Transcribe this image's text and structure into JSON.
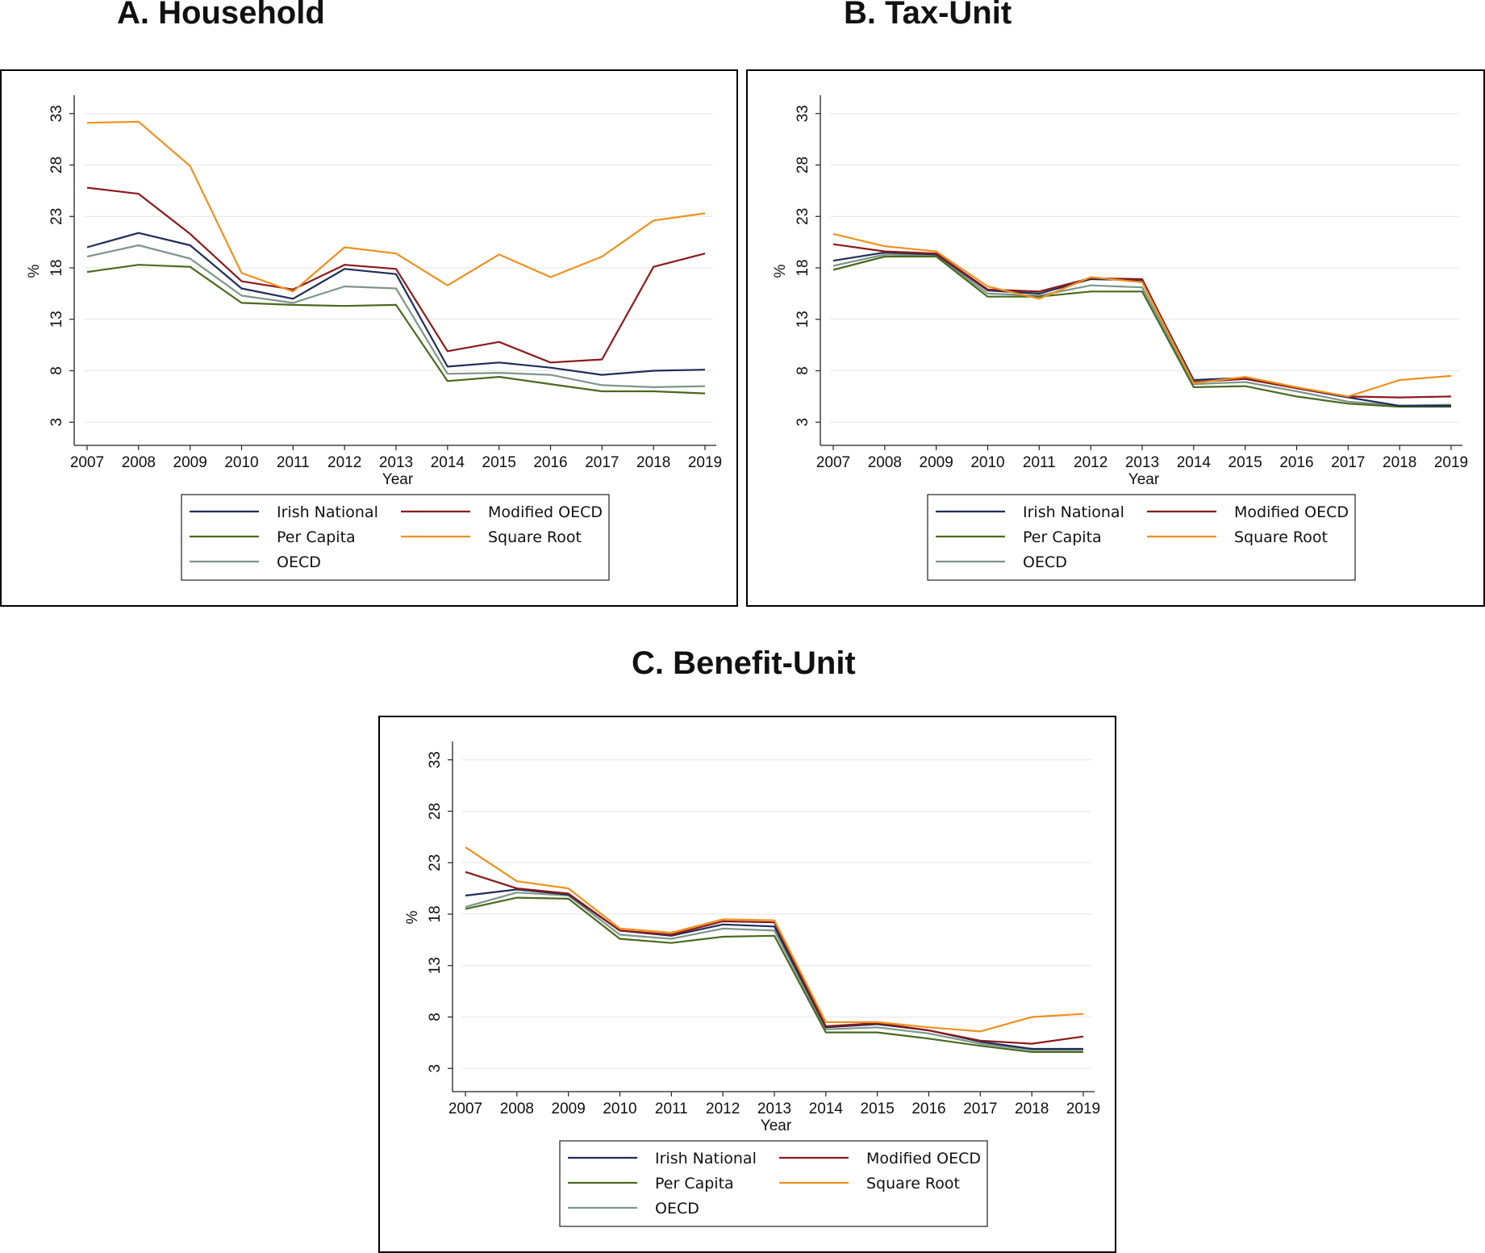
{
  "colors": {
    "irish_national": "#1f2d5a",
    "modified_oecd": "#8b1a1a",
    "per_capita": "#4a6a1e",
    "square_root": "#f0901e",
    "oecd": "#7d968a",
    "grid": "#e6e6e6"
  },
  "chart_data": [
    {
      "type": "line",
      "title": "A. Household",
      "xlabel": "Year",
      "ylabel": "%",
      "ylim": [
        2,
        34
      ],
      "yticks": [
        "3",
        "8",
        "13",
        "18",
        "23",
        "28",
        "33"
      ],
      "grid": true,
      "legend_position": "bottom",
      "x": [
        "2007",
        "2008",
        "2009",
        "2010",
        "2011",
        "2012",
        "2013",
        "2014",
        "2015",
        "2016",
        "2017",
        "2018",
        "2019"
      ],
      "series": [
        {
          "name": "Irish National",
          "color_key": "irish_national",
          "values": [
            20.0,
            21.4,
            20.2,
            16.0,
            15.0,
            17.9,
            17.4,
            8.4,
            8.8,
            8.3,
            7.6,
            8.0,
            8.1
          ]
        },
        {
          "name": "Modified OECD",
          "color_key": "modified_oecd",
          "values": [
            25.8,
            25.2,
            21.3,
            16.7,
            15.9,
            18.3,
            17.9,
            9.9,
            10.8,
            8.8,
            9.1,
            18.1,
            19.4
          ]
        },
        {
          "name": "Per Capita",
          "color_key": "per_capita",
          "values": [
            17.6,
            18.3,
            18.1,
            14.6,
            14.4,
            14.3,
            14.4,
            7.0,
            7.4,
            6.7,
            6.0,
            6.0,
            5.8
          ]
        },
        {
          "name": "Square Root",
          "color_key": "square_root",
          "values": [
            32.1,
            32.2,
            27.9,
            17.5,
            15.7,
            20.0,
            19.4,
            16.3,
            19.3,
            17.1,
            19.1,
            22.6,
            23.3
          ]
        },
        {
          "name": "OECD",
          "color_key": "oecd",
          "values": [
            19.1,
            20.2,
            18.9,
            15.3,
            14.6,
            16.2,
            16.0,
            7.7,
            7.8,
            7.6,
            6.6,
            6.4,
            6.5
          ]
        }
      ]
    },
    {
      "type": "line",
      "title": "B. Tax-Unit",
      "xlabel": "Year",
      "ylabel": "%",
      "ylim": [
        2,
        34
      ],
      "yticks": [
        "3",
        "8",
        "13",
        "18",
        "23",
        "28",
        "33"
      ],
      "grid": true,
      "legend_position": "bottom",
      "x": [
        "2007",
        "2008",
        "2009",
        "2010",
        "2011",
        "2012",
        "2013",
        "2014",
        "2015",
        "2016",
        "2017",
        "2018",
        "2019"
      ],
      "series": [
        {
          "name": "Irish National",
          "color_key": "irish_national",
          "values": [
            18.7,
            19.5,
            19.3,
            15.8,
            15.5,
            16.9,
            16.8,
            7.1,
            7.3,
            6.3,
            5.4,
            4.6,
            4.6
          ]
        },
        {
          "name": "Modified OECD",
          "color_key": "modified_oecd",
          "values": [
            20.3,
            19.6,
            19.4,
            15.9,
            15.7,
            17.0,
            16.9,
            6.9,
            7.2,
            6.3,
            5.5,
            5.4,
            5.5
          ]
        },
        {
          "name": "Per Capita",
          "color_key": "per_capita",
          "values": [
            17.8,
            19.1,
            19.1,
            15.2,
            15.2,
            15.7,
            15.7,
            6.4,
            6.5,
            5.5,
            4.8,
            4.5,
            4.5
          ]
        },
        {
          "name": "Square Root",
          "color_key": "square_root",
          "values": [
            21.3,
            20.1,
            19.6,
            16.2,
            15.0,
            17.1,
            16.6,
            6.8,
            7.4,
            6.4,
            5.5,
            7.1,
            7.5
          ]
        },
        {
          "name": "OECD",
          "color_key": "oecd",
          "values": [
            18.2,
            19.3,
            19.2,
            15.5,
            15.3,
            16.3,
            16.1,
            6.7,
            6.9,
            6.0,
            5.0,
            4.6,
            4.7
          ]
        }
      ]
    },
    {
      "type": "line",
      "title": "C. Benefit-Unit",
      "xlabel": "Year",
      "ylabel": "%",
      "ylim": [
        2,
        34
      ],
      "yticks": [
        "3",
        "8",
        "13",
        "18",
        "23",
        "28",
        "33"
      ],
      "grid": true,
      "legend_position": "bottom",
      "x": [
        "2007",
        "2008",
        "2009",
        "2010",
        "2011",
        "2012",
        "2013",
        "2014",
        "2015",
        "2016",
        "2017",
        "2018",
        "2019"
      ],
      "series": [
        {
          "name": "Irish National",
          "color_key": "irish_national",
          "values": [
            19.8,
            20.4,
            19.9,
            16.4,
            15.9,
            17.0,
            16.8,
            7.0,
            7.3,
            6.7,
            5.6,
            4.9,
            4.9
          ]
        },
        {
          "name": "Modified OECD",
          "color_key": "modified_oecd",
          "values": [
            22.1,
            20.5,
            20.0,
            16.4,
            16.0,
            17.3,
            17.2,
            7.1,
            7.4,
            6.7,
            5.7,
            5.4,
            6.1
          ]
        },
        {
          "name": "Per Capita",
          "color_key": "per_capita",
          "values": [
            18.5,
            19.6,
            19.5,
            15.6,
            15.2,
            15.8,
            15.9,
            6.5,
            6.5,
            5.9,
            5.2,
            4.6,
            4.6
          ]
        },
        {
          "name": "Square Root",
          "color_key": "square_root",
          "values": [
            24.5,
            21.2,
            20.5,
            16.6,
            16.2,
            17.5,
            17.4,
            7.5,
            7.5,
            7.0,
            6.6,
            8.0,
            8.3
          ]
        },
        {
          "name": "OECD",
          "color_key": "oecd",
          "values": [
            18.7,
            20.1,
            19.8,
            16.0,
            15.6,
            16.6,
            16.4,
            6.8,
            7.0,
            6.4,
            5.4,
            4.8,
            4.8
          ]
        }
      ]
    }
  ]
}
